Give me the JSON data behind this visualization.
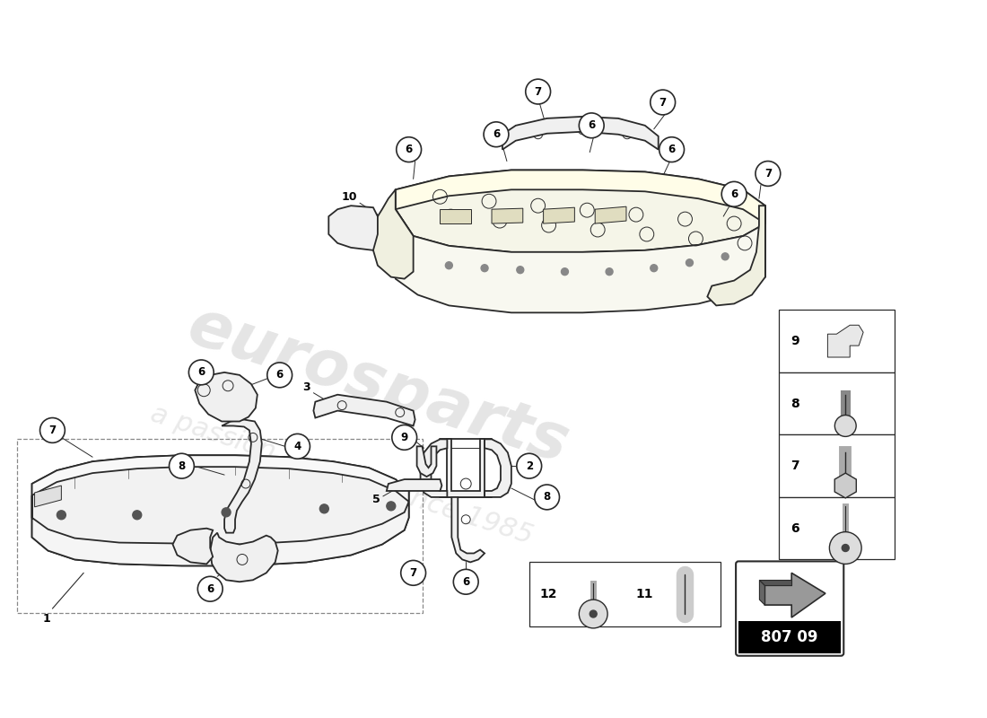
{
  "part_number": "807 09",
  "background_color": "#ffffff",
  "line_color": "#2a2a2a",
  "lw_main": 1.3,
  "lw_thin": 0.7,
  "circle_r": 0.018,
  "circle_fontsize": 8.5
}
